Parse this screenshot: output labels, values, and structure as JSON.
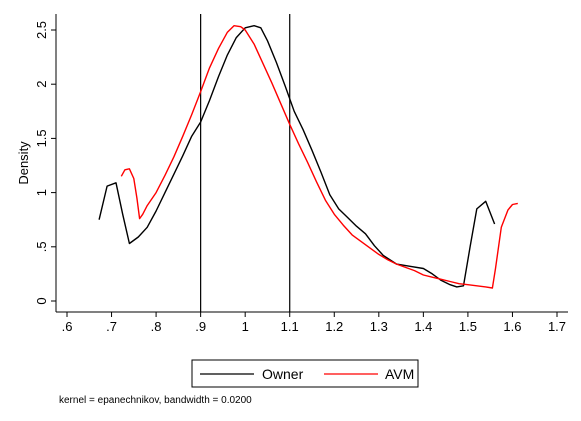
{
  "chart_data": {
    "type": "line",
    "title": "",
    "xlabel": "",
    "ylabel": "Density",
    "xlim": [
      0.6,
      1.7
    ],
    "ylim": [
      0,
      2.6
    ],
    "x_ticks": [
      0.6,
      0.7,
      0.8,
      0.9,
      1.0,
      1.1,
      1.2,
      1.3,
      1.4,
      1.5,
      1.6,
      1.7
    ],
    "x_tick_labels": [
      ".6",
      ".7",
      ".8",
      ".9",
      "1",
      "1.1",
      "1.2",
      "1.3",
      "1.4",
      "1.5",
      "1.6",
      "1.7"
    ],
    "y_ticks": [
      0,
      0.5,
      1,
      1.5,
      2,
      2.5
    ],
    "y_tick_labels": [
      "0",
      ".5",
      "1",
      "1.5",
      "2",
      "2.5"
    ],
    "reference_lines_x": [
      0.9,
      1.1
    ],
    "grid": false,
    "legend_position": "bottom",
    "series": [
      {
        "name": "Owner",
        "color": "#000000",
        "points": [
          [
            0.672,
            0.75
          ],
          [
            0.69,
            1.06
          ],
          [
            0.71,
            1.09
          ],
          [
            0.725,
            0.8
          ],
          [
            0.74,
            0.53
          ],
          [
            0.76,
            0.59
          ],
          [
            0.78,
            0.68
          ],
          [
            0.8,
            0.83
          ],
          [
            0.82,
            1.0
          ],
          [
            0.84,
            1.17
          ],
          [
            0.86,
            1.34
          ],
          [
            0.88,
            1.52
          ],
          [
            0.9,
            1.65
          ],
          [
            0.92,
            1.85
          ],
          [
            0.94,
            2.07
          ],
          [
            0.96,
            2.27
          ],
          [
            0.98,
            2.43
          ],
          [
            1.0,
            2.52
          ],
          [
            1.02,
            2.54
          ],
          [
            1.035,
            2.52
          ],
          [
            1.05,
            2.4
          ],
          [
            1.07,
            2.2
          ],
          [
            1.09,
            1.98
          ],
          [
            1.11,
            1.75
          ],
          [
            1.13,
            1.58
          ],
          [
            1.15,
            1.39
          ],
          [
            1.17,
            1.19
          ],
          [
            1.19,
            0.98
          ],
          [
            1.21,
            0.85
          ],
          [
            1.23,
            0.77
          ],
          [
            1.25,
            0.69
          ],
          [
            1.27,
            0.62
          ],
          [
            1.29,
            0.51
          ],
          [
            1.31,
            0.42
          ],
          [
            1.34,
            0.34
          ],
          [
            1.37,
            0.32
          ],
          [
            1.4,
            0.3
          ],
          [
            1.42,
            0.25
          ],
          [
            1.44,
            0.19
          ],
          [
            1.46,
            0.15
          ],
          [
            1.475,
            0.13
          ],
          [
            1.49,
            0.14
          ],
          [
            1.505,
            0.5
          ],
          [
            1.52,
            0.85
          ],
          [
            1.54,
            0.92
          ],
          [
            1.56,
            0.71
          ]
        ]
      },
      {
        "name": "AVM",
        "color": "#ff0000",
        "points": [
          [
            0.722,
            1.15
          ],
          [
            0.73,
            1.21
          ],
          [
            0.74,
            1.22
          ],
          [
            0.75,
            1.13
          ],
          [
            0.757,
            0.95
          ],
          [
            0.763,
            0.76
          ],
          [
            0.77,
            0.8
          ],
          [
            0.78,
            0.88
          ],
          [
            0.8,
            1.0
          ],
          [
            0.82,
            1.16
          ],
          [
            0.84,
            1.33
          ],
          [
            0.86,
            1.52
          ],
          [
            0.88,
            1.72
          ],
          [
            0.9,
            1.93
          ],
          [
            0.92,
            2.15
          ],
          [
            0.94,
            2.33
          ],
          [
            0.96,
            2.48
          ],
          [
            0.975,
            2.54
          ],
          [
            0.99,
            2.53
          ],
          [
            1.0,
            2.5
          ],
          [
            1.02,
            2.37
          ],
          [
            1.04,
            2.19
          ],
          [
            1.06,
            2.01
          ],
          [
            1.08,
            1.82
          ],
          [
            1.1,
            1.63
          ],
          [
            1.12,
            1.45
          ],
          [
            1.14,
            1.28
          ],
          [
            1.16,
            1.1
          ],
          [
            1.18,
            0.93
          ],
          [
            1.2,
            0.8
          ],
          [
            1.22,
            0.7
          ],
          [
            1.24,
            0.61
          ],
          [
            1.26,
            0.55
          ],
          [
            1.28,
            0.49
          ],
          [
            1.3,
            0.43
          ],
          [
            1.32,
            0.38
          ],
          [
            1.34,
            0.34
          ],
          [
            1.36,
            0.31
          ],
          [
            1.38,
            0.28
          ],
          [
            1.4,
            0.24
          ],
          [
            1.42,
            0.22
          ],
          [
            1.44,
            0.2
          ],
          [
            1.46,
            0.18
          ],
          [
            1.48,
            0.16
          ],
          [
            1.5,
            0.15
          ],
          [
            1.52,
            0.14
          ],
          [
            1.54,
            0.13
          ],
          [
            1.555,
            0.12
          ],
          [
            1.562,
            0.3
          ],
          [
            1.575,
            0.68
          ],
          [
            1.59,
            0.84
          ],
          [
            1.6,
            0.89
          ],
          [
            1.612,
            0.9
          ]
        ]
      }
    ],
    "note": "kernel = epanechnikov, bandwidth = 0.0200"
  }
}
